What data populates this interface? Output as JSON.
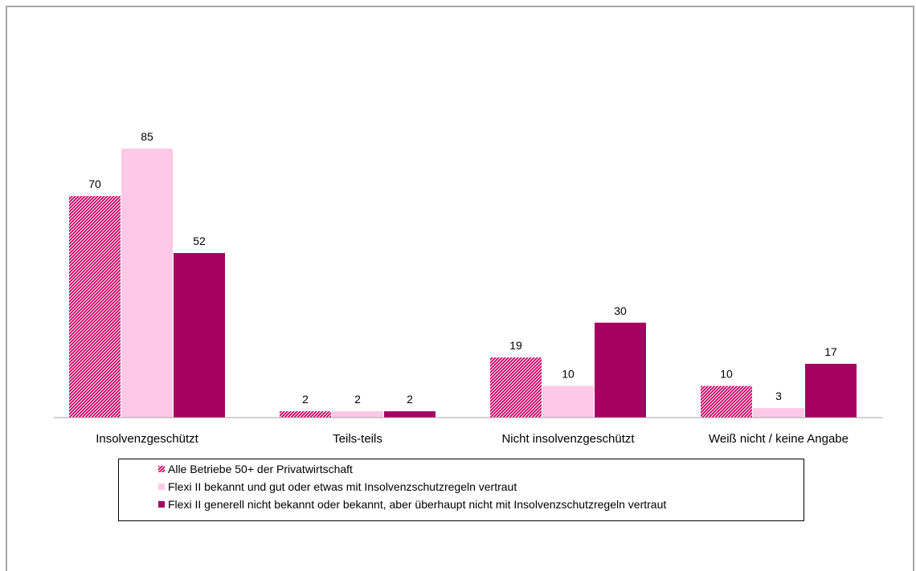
{
  "chart_data": {
    "type": "bar",
    "categories": [
      "Insolvenzgeschützt",
      "Teils-teils",
      "Nicht insolvenzgeschützt",
      "Weiß nicht / keine Angabe"
    ],
    "series": [
      {
        "name": "Alle Betriebe 50+ der Privatwirtschaft",
        "values": [
          70,
          2,
          19,
          10
        ],
        "color": "#cc0066",
        "pattern": "hatched"
      },
      {
        "name": "Flexi II bekannt und gut oder etwas mit Insolvenzschutzregeln vertraut",
        "values": [
          85,
          2,
          10,
          3
        ],
        "color": "#ffc8e6",
        "pattern": "solid"
      },
      {
        "name": "Flexi II generell nicht bekannt oder bekannt, aber überhaupt nicht mit Insolvenzschutzregeln vertraut",
        "values": [
          52,
          2,
          30,
          17
        ],
        "color": "#a50060",
        "pattern": "solid"
      }
    ],
    "title": "",
    "xlabel": "",
    "ylabel": "",
    "ylim": [
      0,
      100
    ],
    "grid": false,
    "legend": "bottom-center",
    "data_labels": true
  }
}
